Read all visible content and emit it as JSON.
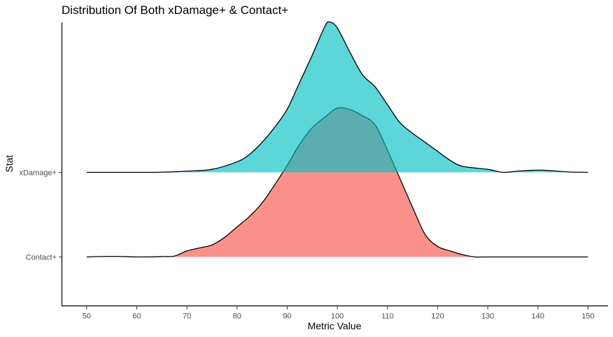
{
  "chart_data": {
    "type": "area",
    "title": "Distribution Of Both xDamage+ & Contact+",
    "xlabel": "Metric Value",
    "ylabel": "Stat",
    "xlim": [
      45,
      154
    ],
    "x_ticks": [
      "50",
      "60",
      "70",
      "80",
      "90",
      "100",
      "110",
      "120",
      "130",
      "140",
      "150"
    ],
    "grid": false,
    "legend": "none",
    "series": [
      {
        "name": "Contact+",
        "color": "#F8766D",
        "fill_opacity": 0.8,
        "points": [
          [
            50,
            0.0
          ],
          [
            55,
            0.004
          ],
          [
            60,
            0.0
          ],
          [
            65,
            0.002
          ],
          [
            67.5,
            0.006
          ],
          [
            70,
            0.04
          ],
          [
            72.5,
            0.06
          ],
          [
            75,
            0.08
          ],
          [
            77.5,
            0.13
          ],
          [
            80,
            0.2
          ],
          [
            82.5,
            0.27
          ],
          [
            85,
            0.36
          ],
          [
            87.5,
            0.48
          ],
          [
            90,
            0.61
          ],
          [
            92.5,
            0.75
          ],
          [
            95,
            0.86
          ],
          [
            97.5,
            0.93
          ],
          [
            100,
            0.99
          ],
          [
            102.5,
            0.98
          ],
          [
            105,
            0.94
          ],
          [
            107.5,
            0.88
          ],
          [
            110,
            0.71
          ],
          [
            112.5,
            0.52
          ],
          [
            115,
            0.33
          ],
          [
            117.5,
            0.15
          ],
          [
            120,
            0.07
          ],
          [
            122.5,
            0.04
          ],
          [
            125,
            0.015
          ],
          [
            127.5,
            0.0
          ],
          [
            130,
            0.0
          ],
          [
            150,
            0.0
          ]
        ]
      },
      {
        "name": "xDamage+",
        "color": "#00BFC4",
        "fill_opacity": 0.64,
        "points": [
          [
            50,
            0.0
          ],
          [
            60,
            0.0
          ],
          [
            65,
            0.001
          ],
          [
            70,
            0.008
          ],
          [
            75,
            0.02
          ],
          [
            80,
            0.07
          ],
          [
            82.5,
            0.12
          ],
          [
            85,
            0.2
          ],
          [
            87.5,
            0.3
          ],
          [
            90,
            0.42
          ],
          [
            92.5,
            0.6
          ],
          [
            95,
            0.78
          ],
          [
            97.5,
            0.97
          ],
          [
            98.5,
            1.0
          ],
          [
            100,
            0.96
          ],
          [
            102.5,
            0.8
          ],
          [
            105,
            0.65
          ],
          [
            107.5,
            0.57
          ],
          [
            110,
            0.45
          ],
          [
            112.5,
            0.33
          ],
          [
            115,
            0.26
          ],
          [
            117.5,
            0.2
          ],
          [
            120,
            0.14
          ],
          [
            122.5,
            0.08
          ],
          [
            125,
            0.04
          ],
          [
            130,
            0.02
          ],
          [
            133,
            0.0
          ],
          [
            136,
            0.008
          ],
          [
            140,
            0.015
          ],
          [
            143,
            0.01
          ],
          [
            146,
            0.003
          ],
          [
            150,
            0.0
          ]
        ]
      }
    ]
  }
}
